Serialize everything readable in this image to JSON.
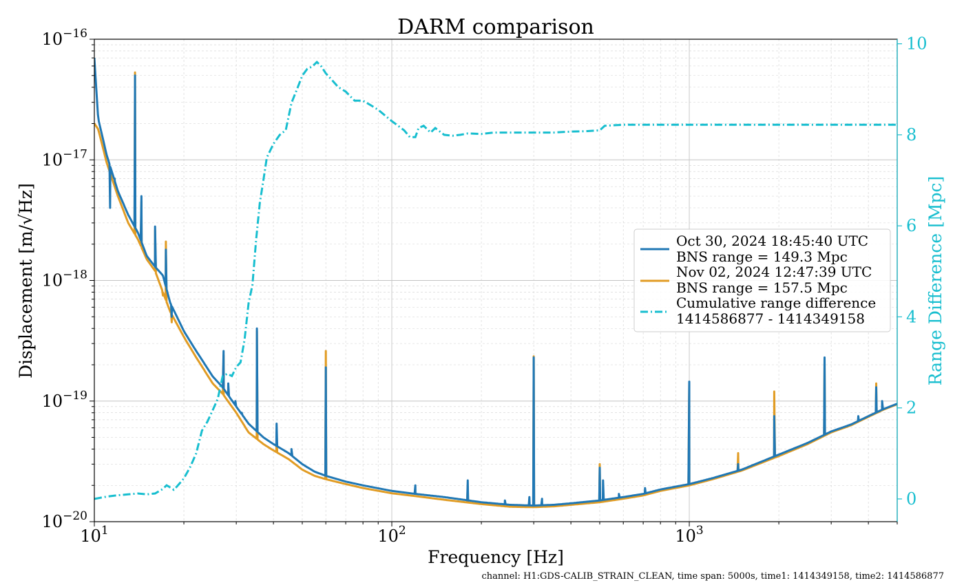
{
  "chart_data": {
    "type": "line",
    "title": "DARM comparison",
    "xlabel": "Frequency [Hz]",
    "ylabel": "Displacement [m/√Hz]",
    "y2label": "Range Difference [Mpc]",
    "x_scale": "log",
    "y_scale": "log",
    "xlim": [
      10,
      5000
    ],
    "ylim": [
      1e-20,
      1e-16
    ],
    "y2lim": [
      -0.5,
      10.1
    ],
    "x_ticks": [
      {
        "value": 10,
        "base": "10",
        "exp": "1"
      },
      {
        "value": 100,
        "base": "10",
        "exp": "2"
      },
      {
        "value": 1000,
        "base": "10",
        "exp": "3"
      }
    ],
    "y_ticks": [
      {
        "value": 1e-20,
        "base": "10",
        "exp": "−20"
      },
      {
        "value": 1e-19,
        "base": "10",
        "exp": "−19"
      },
      {
        "value": 1e-18,
        "base": "10",
        "exp": "−18"
      },
      {
        "value": 1e-17,
        "base": "10",
        "exp": "−17"
      },
      {
        "value": 1e-16,
        "base": "10",
        "exp": "−16"
      }
    ],
    "y2_ticks": [
      0,
      2,
      4,
      6,
      8,
      10
    ],
    "grid": true,
    "legend_position": "center-right",
    "footer": "channel: H1:GDS-CALIB_STRAIN_CLEAN, time span: 5000s, time1: 1414349158, time2: 1414586877",
    "colors": {
      "oct": "#1f77b4",
      "nov": "#e19c24",
      "diff": "#17becf",
      "grid": "#d0d0d0",
      "axis": "#000000"
    },
    "series": [
      {
        "name": "Oct 30, 2024 18:45:40 UTC",
        "name_line2": "BNS range = 149.3 Mpc",
        "axis": "left",
        "style": "solid",
        "base": [
          [
            10,
            7e-17
          ],
          [
            10.3,
            2.2e-17
          ],
          [
            11,
            1.1e-17
          ],
          [
            12,
            5.5e-18
          ],
          [
            13,
            3.5e-18
          ],
          [
            14,
            2.5e-18
          ],
          [
            15,
            1.6e-18
          ],
          [
            16,
            1.3e-18
          ],
          [
            17,
            1.1e-18
          ],
          [
            18,
            6.5e-19
          ],
          [
            20,
            3.8e-19
          ],
          [
            22,
            2.6e-19
          ],
          [
            25,
            1.6e-19
          ],
          [
            27,
            1.3e-19
          ],
          [
            30,
            9e-20
          ],
          [
            33,
            6.5e-20
          ],
          [
            37,
            5e-20
          ],
          [
            40,
            4.4e-20
          ],
          [
            45,
            3.7e-20
          ],
          [
            50,
            3e-20
          ],
          [
            55,
            2.6e-20
          ],
          [
            60,
            2.4e-20
          ],
          [
            70,
            2.15e-20
          ],
          [
            80,
            2e-20
          ],
          [
            100,
            1.8e-20
          ],
          [
            120,
            1.7e-20
          ],
          [
            150,
            1.6e-20
          ],
          [
            200,
            1.45e-20
          ],
          [
            250,
            1.38e-20
          ],
          [
            300,
            1.36e-20
          ],
          [
            350,
            1.38e-20
          ],
          [
            400,
            1.42e-20
          ],
          [
            500,
            1.5e-20
          ],
          [
            600,
            1.6e-20
          ],
          [
            700,
            1.7e-20
          ],
          [
            800,
            1.85e-20
          ],
          [
            1000,
            2.05e-20
          ],
          [
            1200,
            2.3e-20
          ],
          [
            1500,
            2.7e-20
          ],
          [
            2000,
            3.6e-20
          ],
          [
            2500,
            4.5e-20
          ],
          [
            3000,
            5.6e-20
          ],
          [
            3500,
            6.4e-20
          ],
          [
            4000,
            7.5e-20
          ],
          [
            4500,
            8.6e-20
          ],
          [
            5000,
            9.5e-20
          ]
        ],
        "peaks": [
          [
            11.3,
            4e-18
          ],
          [
            11.7,
            7e-18
          ],
          [
            13.7,
            5e-17
          ],
          [
            14.4,
            5e-18
          ],
          [
            16,
            2.8e-18
          ],
          [
            17.4,
            1.8e-18
          ],
          [
            18.2,
            5e-19
          ],
          [
            27.2,
            2.6e-19
          ],
          [
            28.2,
            1.4e-19
          ],
          [
            29.8,
            1e-19
          ],
          [
            31.3,
            8e-20
          ],
          [
            35.2,
            4e-19
          ],
          [
            41,
            6.5e-20
          ],
          [
            46,
            4e-20
          ],
          [
            60,
            1.9e-19
          ],
          [
            120,
            2e-20
          ],
          [
            180,
            2.2e-20
          ],
          [
            240,
            1.5e-20
          ],
          [
            290,
            1.6e-20
          ],
          [
            300,
            2.3e-19
          ],
          [
            320,
            1.55e-20
          ],
          [
            500,
            2.8e-20
          ],
          [
            513,
            2.2e-20
          ],
          [
            580,
            1.7e-20
          ],
          [
            710,
            1.9e-20
          ],
          [
            1000,
            1.45e-19
          ],
          [
            1460,
            3e-20
          ],
          [
            1930,
            7.5e-20
          ],
          [
            2850,
            2.3e-19
          ],
          [
            3700,
            7.5e-20
          ],
          [
            4250,
            1.3e-19
          ],
          [
            4450,
            1e-19
          ]
        ]
      },
      {
        "name": "Nov 02, 2024 12:47:39 UTC",
        "name_line2": "BNS range = 157.5 Mpc",
        "axis": "left",
        "style": "solid",
        "base": [
          [
            10,
            2e-17
          ],
          [
            10.3,
            1.8e-17
          ],
          [
            11,
            9.5e-18
          ],
          [
            12,
            5e-18
          ],
          [
            13,
            3e-18
          ],
          [
            14,
            2.2e-18
          ],
          [
            15,
            1.5e-18
          ],
          [
            16,
            1.2e-18
          ],
          [
            17,
            8e-19
          ],
          [
            18,
            5.5e-19
          ],
          [
            20,
            3.4e-19
          ],
          [
            22,
            2.3e-19
          ],
          [
            25,
            1.4e-19
          ],
          [
            27,
            1.15e-19
          ],
          [
            30,
            8e-20
          ],
          [
            33,
            5.5e-20
          ],
          [
            37,
            4.4e-20
          ],
          [
            40,
            3.9e-20
          ],
          [
            45,
            3.3e-20
          ],
          [
            50,
            2.7e-20
          ],
          [
            55,
            2.4e-20
          ],
          [
            60,
            2.25e-20
          ],
          [
            70,
            2.05e-20
          ],
          [
            80,
            1.9e-20
          ],
          [
            100,
            1.72e-20
          ],
          [
            120,
            1.63e-20
          ],
          [
            150,
            1.52e-20
          ],
          [
            200,
            1.4e-20
          ],
          [
            250,
            1.33e-20
          ],
          [
            300,
            1.32e-20
          ],
          [
            350,
            1.34e-20
          ],
          [
            400,
            1.38e-20
          ],
          [
            500,
            1.45e-20
          ],
          [
            600,
            1.55e-20
          ],
          [
            700,
            1.65e-20
          ],
          [
            800,
            1.8e-20
          ],
          [
            1000,
            2e-20
          ],
          [
            1200,
            2.25e-20
          ],
          [
            1500,
            2.65e-20
          ],
          [
            2000,
            3.5e-20
          ],
          [
            2500,
            4.4e-20
          ],
          [
            3000,
            5.5e-20
          ],
          [
            3500,
            6.3e-20
          ],
          [
            4000,
            7.4e-20
          ],
          [
            4500,
            8.5e-20
          ],
          [
            5000,
            9.4e-20
          ]
        ],
        "peaks": [
          [
            11.7,
            6e-18
          ],
          [
            13.7,
            5.3e-17
          ],
          [
            14.4,
            4.5e-18
          ],
          [
            16,
            2.6e-18
          ],
          [
            17,
            7.5e-19
          ],
          [
            17.4,
            2.1e-18
          ],
          [
            18.2,
            4.5e-19
          ],
          [
            27.2,
            2.4e-19
          ],
          [
            35.2,
            3.8e-19
          ],
          [
            41,
            5.5e-20
          ],
          [
            60,
            2.6e-19
          ],
          [
            180,
            2e-20
          ],
          [
            300,
            2.35e-19
          ],
          [
            500,
            3e-20
          ],
          [
            1000,
            1.4e-19
          ],
          [
            1460,
            3.7e-20
          ],
          [
            1930,
            1.2e-19
          ],
          [
            2850,
            2.2e-19
          ],
          [
            4250,
            1.4e-19
          ]
        ]
      },
      {
        "name": "Cumulative range difference",
        "name_line2": "1414586877 - 1414349158",
        "axis": "right",
        "style": "dashdot",
        "points": [
          [
            10,
            0
          ],
          [
            11,
            0.05
          ],
          [
            12,
            0.08
          ],
          [
            13,
            0.1
          ],
          [
            14,
            0.12
          ],
          [
            15,
            0.1
          ],
          [
            16,
            0.12
          ],
          [
            17,
            0.22
          ],
          [
            17.5,
            0.3
          ],
          [
            18,
            0.25
          ],
          [
            18.5,
            0.2
          ],
          [
            19,
            0.28
          ],
          [
            20,
            0.45
          ],
          [
            21,
            0.7
          ],
          [
            22,
            1.0
          ],
          [
            23,
            1.5
          ],
          [
            24,
            1.7
          ],
          [
            25,
            1.95
          ],
          [
            26,
            2.2
          ],
          [
            27,
            2.7
          ],
          [
            28,
            2.75
          ],
          [
            29,
            2.7
          ],
          [
            30,
            2.9
          ],
          [
            31,
            3.0
          ],
          [
            32,
            3.5
          ],
          [
            33,
            4.3
          ],
          [
            34,
            4.7
          ],
          [
            35,
            5.7
          ],
          [
            36,
            6.5
          ],
          [
            37,
            7.0
          ],
          [
            38,
            7.5
          ],
          [
            40,
            7.8
          ],
          [
            42,
            8.0
          ],
          [
            44,
            8.1
          ],
          [
            46,
            8.7
          ],
          [
            48,
            9.0
          ],
          [
            50,
            9.3
          ],
          [
            52,
            9.45
          ],
          [
            54,
            9.5
          ],
          [
            56,
            9.6
          ],
          [
            57,
            9.55
          ],
          [
            58,
            9.5
          ],
          [
            60,
            9.35
          ],
          [
            63,
            9.2
          ],
          [
            66,
            9.05
          ],
          [
            70,
            8.95
          ],
          [
            75,
            8.75
          ],
          [
            80,
            8.75
          ],
          [
            85,
            8.65
          ],
          [
            90,
            8.55
          ],
          [
            100,
            8.3
          ],
          [
            110,
            8.1
          ],
          [
            115,
            7.95
          ],
          [
            120,
            7.95
          ],
          [
            123,
            8.15
          ],
          [
            128,
            8.2
          ],
          [
            135,
            8.05
          ],
          [
            140,
            8.15
          ],
          [
            150,
            8.0
          ],
          [
            160,
            7.98
          ],
          [
            170,
            8.0
          ],
          [
            180,
            8.03
          ],
          [
            200,
            8.02
          ],
          [
            220,
            8.05
          ],
          [
            250,
            8.05
          ],
          [
            300,
            8.05
          ],
          [
            350,
            8.05
          ],
          [
            400,
            8.07
          ],
          [
            450,
            8.08
          ],
          [
            500,
            8.1
          ],
          [
            520,
            8.2
          ],
          [
            600,
            8.22
          ],
          [
            1000,
            8.22
          ],
          [
            5000,
            8.22
          ]
        ]
      }
    ]
  }
}
